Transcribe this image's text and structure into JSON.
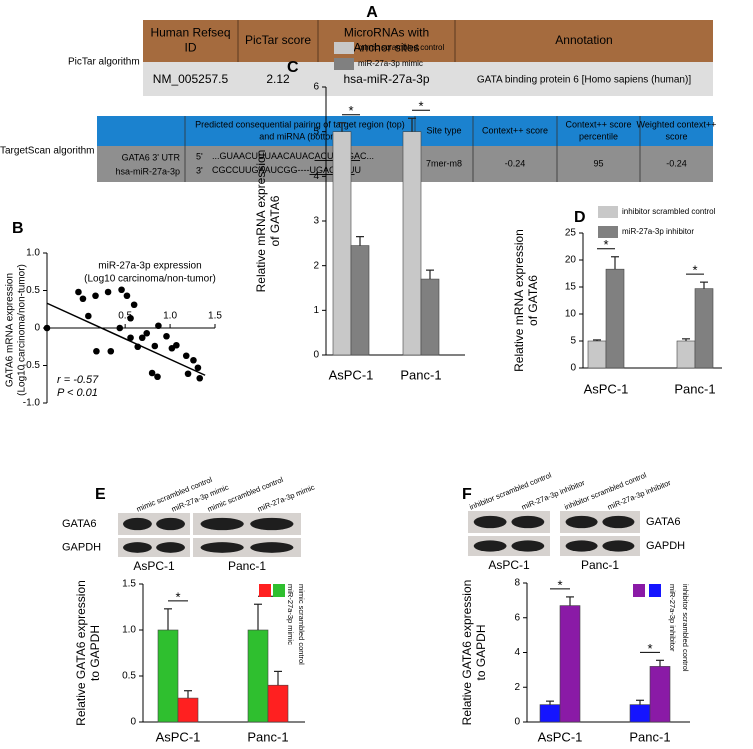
{
  "panel_a": {
    "label": "A",
    "pictar": {
      "name": "PicTar algorithm",
      "header": [
        [
          "Human Refseq",
          "ID"
        ],
        [
          "PicTar score"
        ],
        [
          "MicroRNAs with",
          "Anchor sites"
        ],
        [
          "Annotation"
        ]
      ],
      "row": [
        "NM_005257.5",
        2.12,
        "hsa-miR-27a-3p",
        "GATA binding protein 6 [Homo sapiens (human)]"
      ]
    },
    "targetscan": {
      "name": "TargetScan algorithm",
      "header": [
        [
          "Predicted consequential pairing of target region (top)",
          "and miRNA (bottom)"
        ],
        [
          "Site type"
        ],
        [
          "Context++ score"
        ],
        [
          "Context++ score",
          "percentile"
        ],
        [
          "Weighted context++",
          "score"
        ]
      ],
      "row": {
        "labels": [
          "GATA6 3' UTR",
          "hsa-miR-27a-3p"
        ],
        "pairing": [
          {
            "end": "5'",
            "seq": [
              "...GUAACUUUAACAUAC",
              "ACUGUGA",
              "C..."
            ]
          },
          {
            "end": "3'",
            "seq": [
              "CGCCUUGAAUCGG----",
              "UGACACU",
              "U"
            ]
          }
        ],
        "site_type": "7mer-m8",
        "context_score": -0.24,
        "percentile": 95,
        "weighted": -0.24
      }
    }
  },
  "chart_data": [
    {
      "type": "scatter",
      "label": "B",
      "color": "#000000",
      "x": [
        -0.37,
        -0.02,
        0.03,
        0.17,
        0.09,
        0.31,
        0.46,
        0.52,
        0.6,
        0.56,
        0.18,
        0.34,
        0.44,
        0.56,
        0.64,
        0.69,
        0.74,
        0.83,
        0.87,
        0.96,
        1.02,
        0.8,
        0.86,
        1.07,
        1.18,
        1.2,
        1.26,
        1.33,
        1.31
      ],
      "values": [
        0,
        0.48,
        0.39,
        0.43,
        0.16,
        0.48,
        0.51,
        0.43,
        0.31,
        0.13,
        -0.31,
        -0.31,
        0,
        -0.13,
        -0.25,
        -0.13,
        -0.07,
        -0.24,
        0.03,
        -0.11,
        -0.27,
        -0.6,
        -0.65,
        -0.23,
        -0.37,
        -0.61,
        -0.43,
        -0.67,
        -0.53
      ],
      "trend": {
        "x": [
          -0.37,
          1.39
        ],
        "values": [
          0.33,
          -0.63
        ]
      },
      "xlim": [
        -0.37,
        1.5
      ],
      "xticks": [
        0.5,
        {
          "value": 1,
          "label": "1.0"
        },
        1.5
      ],
      "ylim": [
        -1,
        1
      ],
      "yticks": [
        {
          "value": 1,
          "label": "1.0"
        },
        0.5,
        0,
        -0.5,
        {
          "value": -1,
          "label": "-1.0"
        }
      ],
      "x_label": [
        "miR-27a-3p expression",
        "(Log10 carcinoma/non-tumor)"
      ],
      "y_label": [
        "GATA6 mRNA expression",
        "(Log10 carcinoma/non-tumor)"
      ],
      "annotations": [
        "r = -0.57",
        "P < 0.01"
      ]
    },
    {
      "type": "bar",
      "label": "C",
      "categories": [
        "AsPC-1",
        "Panc-1"
      ],
      "series": [
        {
          "name": "mimic scrambled control",
          "color": "#c8c8c8",
          "values": [
            5.0,
            5.0
          ],
          "errors": [
            0.2,
            0.3
          ]
        },
        {
          "name": "miR-27a-3p mimic",
          "color": "#808080",
          "values": [
            2.45,
            1.7
          ],
          "errors": [
            0.2,
            0.2
          ]
        }
      ],
      "ylim": [
        0,
        6
      ],
      "yticks": [
        0,
        1,
        2,
        3,
        4,
        5,
        6
      ],
      "y_label": [
        "Relative mRNA expression",
        "of GATA6"
      ],
      "significance": [
        "*",
        "*"
      ]
    },
    {
      "type": "bar",
      "label": "D",
      "categories": [
        "AsPC-1",
        "Panc-1"
      ],
      "series": [
        {
          "name": "inhibitor scrambled control",
          "color": "#c8c8c8",
          "values": [
            5.0,
            5.0
          ],
          "errors": [
            0.2,
            0.4
          ]
        },
        {
          "name": "miR-27a-3p inhibitor",
          "color": "#808080",
          "values": [
            18.3,
            14.7
          ],
          "errors": [
            2.3,
            1.2
          ]
        }
      ],
      "ylim": [
        0,
        25
      ],
      "yticks": [
        0,
        5,
        10,
        15,
        20,
        25
      ],
      "y_label": [
        "Relative mRNA expression",
        "of GATA6"
      ],
      "significance": [
        "*",
        "*"
      ]
    },
    {
      "type": "bar",
      "label": "E",
      "categories": [
        "AsPC-1",
        "Panc-1"
      ],
      "series": [
        {
          "name": "mimic scrambled control",
          "color": "#2fbf2f",
          "values": [
            1.0,
            1.0
          ],
          "errors": [
            0.23,
            0.28
          ]
        },
        {
          "name": "miR-27a-3p mimic",
          "color": "#ff2020",
          "values": [
            0.26,
            0.4
          ],
          "errors": [
            0.08,
            0.15
          ]
        }
      ],
      "ylim": [
        0,
        1.5
      ],
      "yticks": [
        0,
        0.5,
        {
          "value": 1,
          "label": "1.0"
        },
        1.5
      ],
      "y_label": [
        "Relative GATA6 expression",
        "to GAPDH"
      ],
      "significance": [
        "*",
        "*"
      ],
      "blot": {
        "lanes": [
          "mimic scrambled control",
          "miR-27a-3p mimic",
          "mimic scrambled control",
          "miR-27a-3p mimic"
        ],
        "bands": [
          "GATA6",
          "GAPDH"
        ],
        "groups": [
          "AsPC-1",
          "Panc-1"
        ]
      }
    },
    {
      "type": "bar",
      "label": "F",
      "categories": [
        "AsPC-1",
        "Panc-1"
      ],
      "series": [
        {
          "name": "inhibitor scrambled control",
          "color": "#1515ff",
          "values": [
            1.0,
            1.0
          ],
          "errors": [
            0.2,
            0.25
          ]
        },
        {
          "name": "miR-27a-3p inhibitor",
          "color": "#8a1aa6",
          "values": [
            6.7,
            3.2
          ],
          "errors": [
            0.5,
            0.35
          ]
        }
      ],
      "ylim": [
        0,
        8
      ],
      "yticks": [
        0,
        2,
        4,
        6,
        8
      ],
      "y_label": [
        "Relative GATA6 expression",
        "to GAPDH"
      ],
      "significance": [
        "*",
        "*"
      ],
      "blot": {
        "lanes": [
          "inhibitor scrambled control",
          "miR-27a-3p inhibitor",
          "inhibitor scrambled control",
          "miR-27a-3p inhibitor"
        ],
        "bands": [
          "GATA6",
          "GAPDH"
        ],
        "groups": [
          "AsPC-1",
          "Panc-1"
        ]
      }
    }
  ]
}
